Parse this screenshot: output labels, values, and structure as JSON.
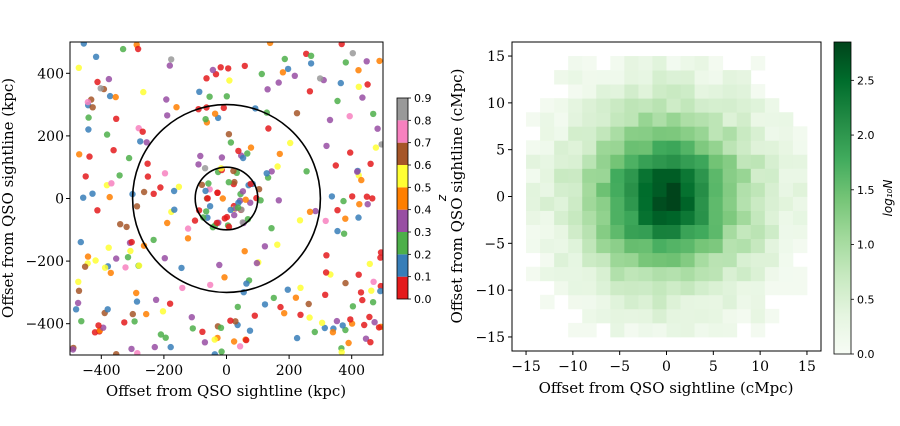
{
  "chart_data": [
    {
      "type": "scatter",
      "title": "",
      "xlabel": "Offset from QSO sightline (kpc)",
      "ylabel": "Offset from QSO sightline (kpc)",
      "xlim": [
        -500,
        500
      ],
      "ylim": [
        -500,
        500
      ],
      "x_ticks": [
        -400,
        -200,
        0,
        200,
        400
      ],
      "y_ticks": [
        -400,
        -200,
        0,
        200,
        400
      ],
      "x_tick_labels": [
        "−400",
        "−200",
        "0",
        "200",
        "400"
      ],
      "y_tick_labels": [
        "−400",
        "−200",
        "0",
        "200",
        "400"
      ],
      "circles_kpc": [
        100,
        300
      ],
      "point_count": 340,
      "colorbar": {
        "label": "z",
        "min": 0.0,
        "max": 0.9,
        "tick_labels": [
          "0.0",
          "0.1",
          "0.2",
          "0.3",
          "0.4",
          "0.5",
          "0.6",
          "0.7",
          "0.8",
          "0.9"
        ],
        "bins": [
          {
            "range": [
              0.0,
              0.1
            ],
            "color": "#e41a1c"
          },
          {
            "range": [
              0.1,
              0.2
            ],
            "color": "#377eb8"
          },
          {
            "range": [
              0.2,
              0.3
            ],
            "color": "#4daf4a"
          },
          {
            "range": [
              0.3,
              0.4
            ],
            "color": "#984ea3"
          },
          {
            "range": [
              0.4,
              0.5
            ],
            "color": "#ff7f00"
          },
          {
            "range": [
              0.5,
              0.6
            ],
            "color": "#ffff33"
          },
          {
            "range": [
              0.6,
              0.7
            ],
            "color": "#a65628"
          },
          {
            "range": [
              0.7,
              0.8
            ],
            "color": "#f781bf"
          },
          {
            "range": [
              0.8,
              0.9
            ],
            "color": "#999999"
          }
        ]
      }
    },
    {
      "type": "heatmap",
      "title": "",
      "xlabel": "Offset from QSO sightline (cMpc)",
      "ylabel": "Offset from QSO sightline (cMpc)",
      "xlim": [
        -16.5,
        16.5
      ],
      "ylim": [
        -16.5,
        16.5
      ],
      "x_ticks": [
        -15,
        -10,
        -5,
        0,
        5,
        10,
        15
      ],
      "y_ticks": [
        -15,
        -10,
        -5,
        0,
        5,
        10,
        15
      ],
      "x_tick_labels": [
        "−15",
        "−10",
        "−5",
        "0",
        "5",
        "10",
        "15"
      ],
      "y_tick_labels": [
        "−15",
        "−10",
        "−5",
        "0",
        "5",
        "10",
        "15"
      ],
      "bin_size_cmpc": 1.5,
      "grid_extent_cmpc": [
        -15,
        15
      ],
      "peak_log10N": 2.85,
      "colorbar": {
        "label": "log₁₀N",
        "min": 0.0,
        "max": 2.85,
        "ticks": [
          0.0,
          0.5,
          1.0,
          1.5,
          2.0,
          2.5
        ],
        "tick_labels": [
          "0.0",
          "0.5",
          "1.0",
          "1.5",
          "2.0",
          "2.5"
        ],
        "colormap": "Greens",
        "color_low": "#f7fcf5",
        "color_high": "#00441b"
      }
    }
  ]
}
